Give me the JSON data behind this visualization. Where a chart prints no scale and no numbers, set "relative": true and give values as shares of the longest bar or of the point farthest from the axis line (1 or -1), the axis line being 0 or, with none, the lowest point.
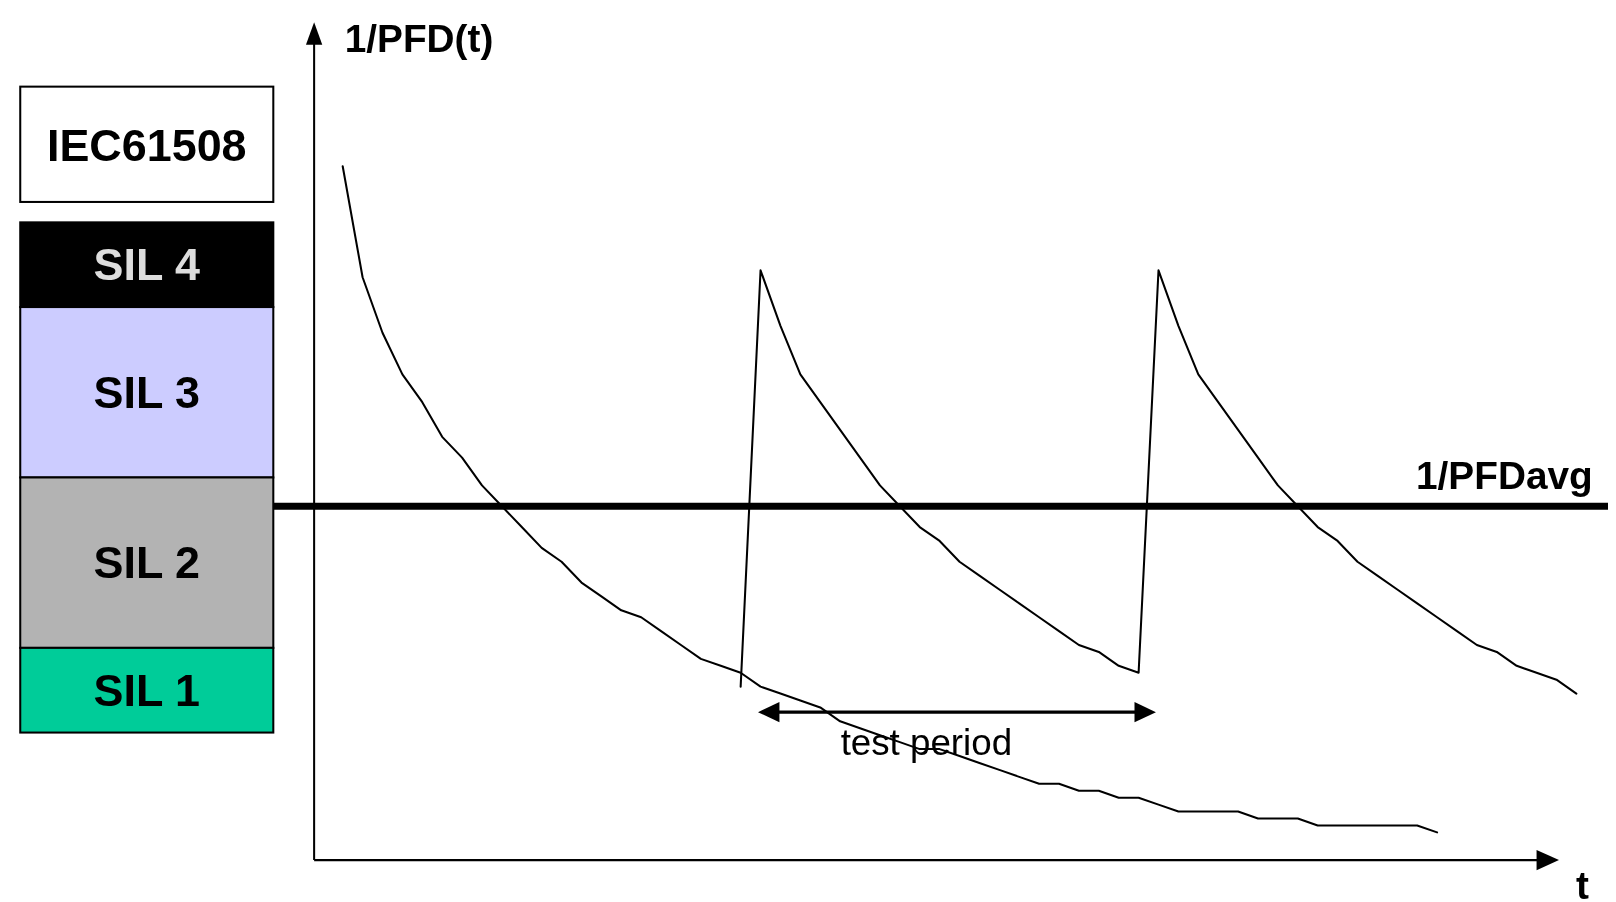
{
  "chart_data": {
    "type": "line",
    "relative": true,
    "ylabel": "1/PFD(t)",
    "xlabel": "t",
    "tick_labels": false,
    "legend": false,
    "grid": false,
    "marker": "none",
    "line_style": "solid",
    "categories": [
      null,
      null,
      null,
      null,
      null,
      null,
      null,
      null,
      null,
      null,
      null,
      null,
      null,
      null,
      null,
      null,
      null,
      null,
      null,
      null,
      null,
      null,
      null,
      null,
      null,
      null,
      null,
      null,
      null,
      null,
      null,
      null,
      null,
      null,
      null,
      null,
      null,
      null,
      null,
      null,
      null,
      null,
      null,
      null,
      null,
      null,
      null,
      null,
      null,
      null,
      null,
      null,
      null,
      null,
      null,
      null,
      null,
      null,
      null,
      null,
      null,
      null,
      null
    ],
    "series": [
      {
        "color": "#000000",
        "values": [
          1.0,
          0.84,
          0.76,
          0.7,
          0.66,
          0.61,
          0.58,
          0.54,
          0.51,
          0.48,
          0.45,
          0.43,
          0.4,
          0.38,
          0.36,
          0.35,
          0.33,
          0.31,
          0.29,
          0.28,
          0.27,
          0.25,
          0.24,
          0.23,
          0.22,
          0.2,
          0.19,
          0.18,
          0.17,
          0.16,
          0.16,
          0.15,
          0.14,
          0.13,
          0.12,
          0.11,
          0.11,
          0.1,
          0.1,
          0.09,
          0.09,
          0.08,
          0.07,
          0.07,
          0.07,
          0.07,
          0.06,
          0.06,
          0.06,
          0.05,
          0.05,
          0.05,
          0.05,
          0.05,
          0.05,
          0.04,
          null,
          null,
          null,
          null,
          null,
          null,
          null
        ]
      },
      {
        "color": "#000000",
        "values": [
          null,
          null,
          null,
          null,
          null,
          null,
          null,
          null,
          null,
          null,
          null,
          null,
          null,
          null,
          null,
          null,
          null,
          null,
          null,
          null,
          0.25,
          0.85,
          0.77,
          0.7,
          0.66,
          0.62,
          0.58,
          0.54,
          0.51,
          0.48,
          0.46,
          0.43,
          0.41,
          0.39,
          0.37,
          0.35,
          0.33,
          0.31,
          0.3,
          0.28,
          0.27,
          0.85,
          0.77,
          0.7,
          0.66,
          0.62,
          0.58,
          0.54,
          0.51,
          0.48,
          0.46,
          0.43,
          0.41,
          0.39,
          0.37,
          0.35,
          0.33,
          0.31,
          0.3,
          0.28,
          0.27,
          0.26,
          0.24
        ]
      }
    ],
    "ref_lines": [
      {
        "axis": "y",
        "value": 0.51,
        "label": "1/PFDavg",
        "color": "#000000"
      }
    ],
    "annotations": [
      "IEC61508",
      "SIL 4",
      "SIL 3",
      "SIL 2",
      "SIL 1",
      "test period"
    ]
  }
}
